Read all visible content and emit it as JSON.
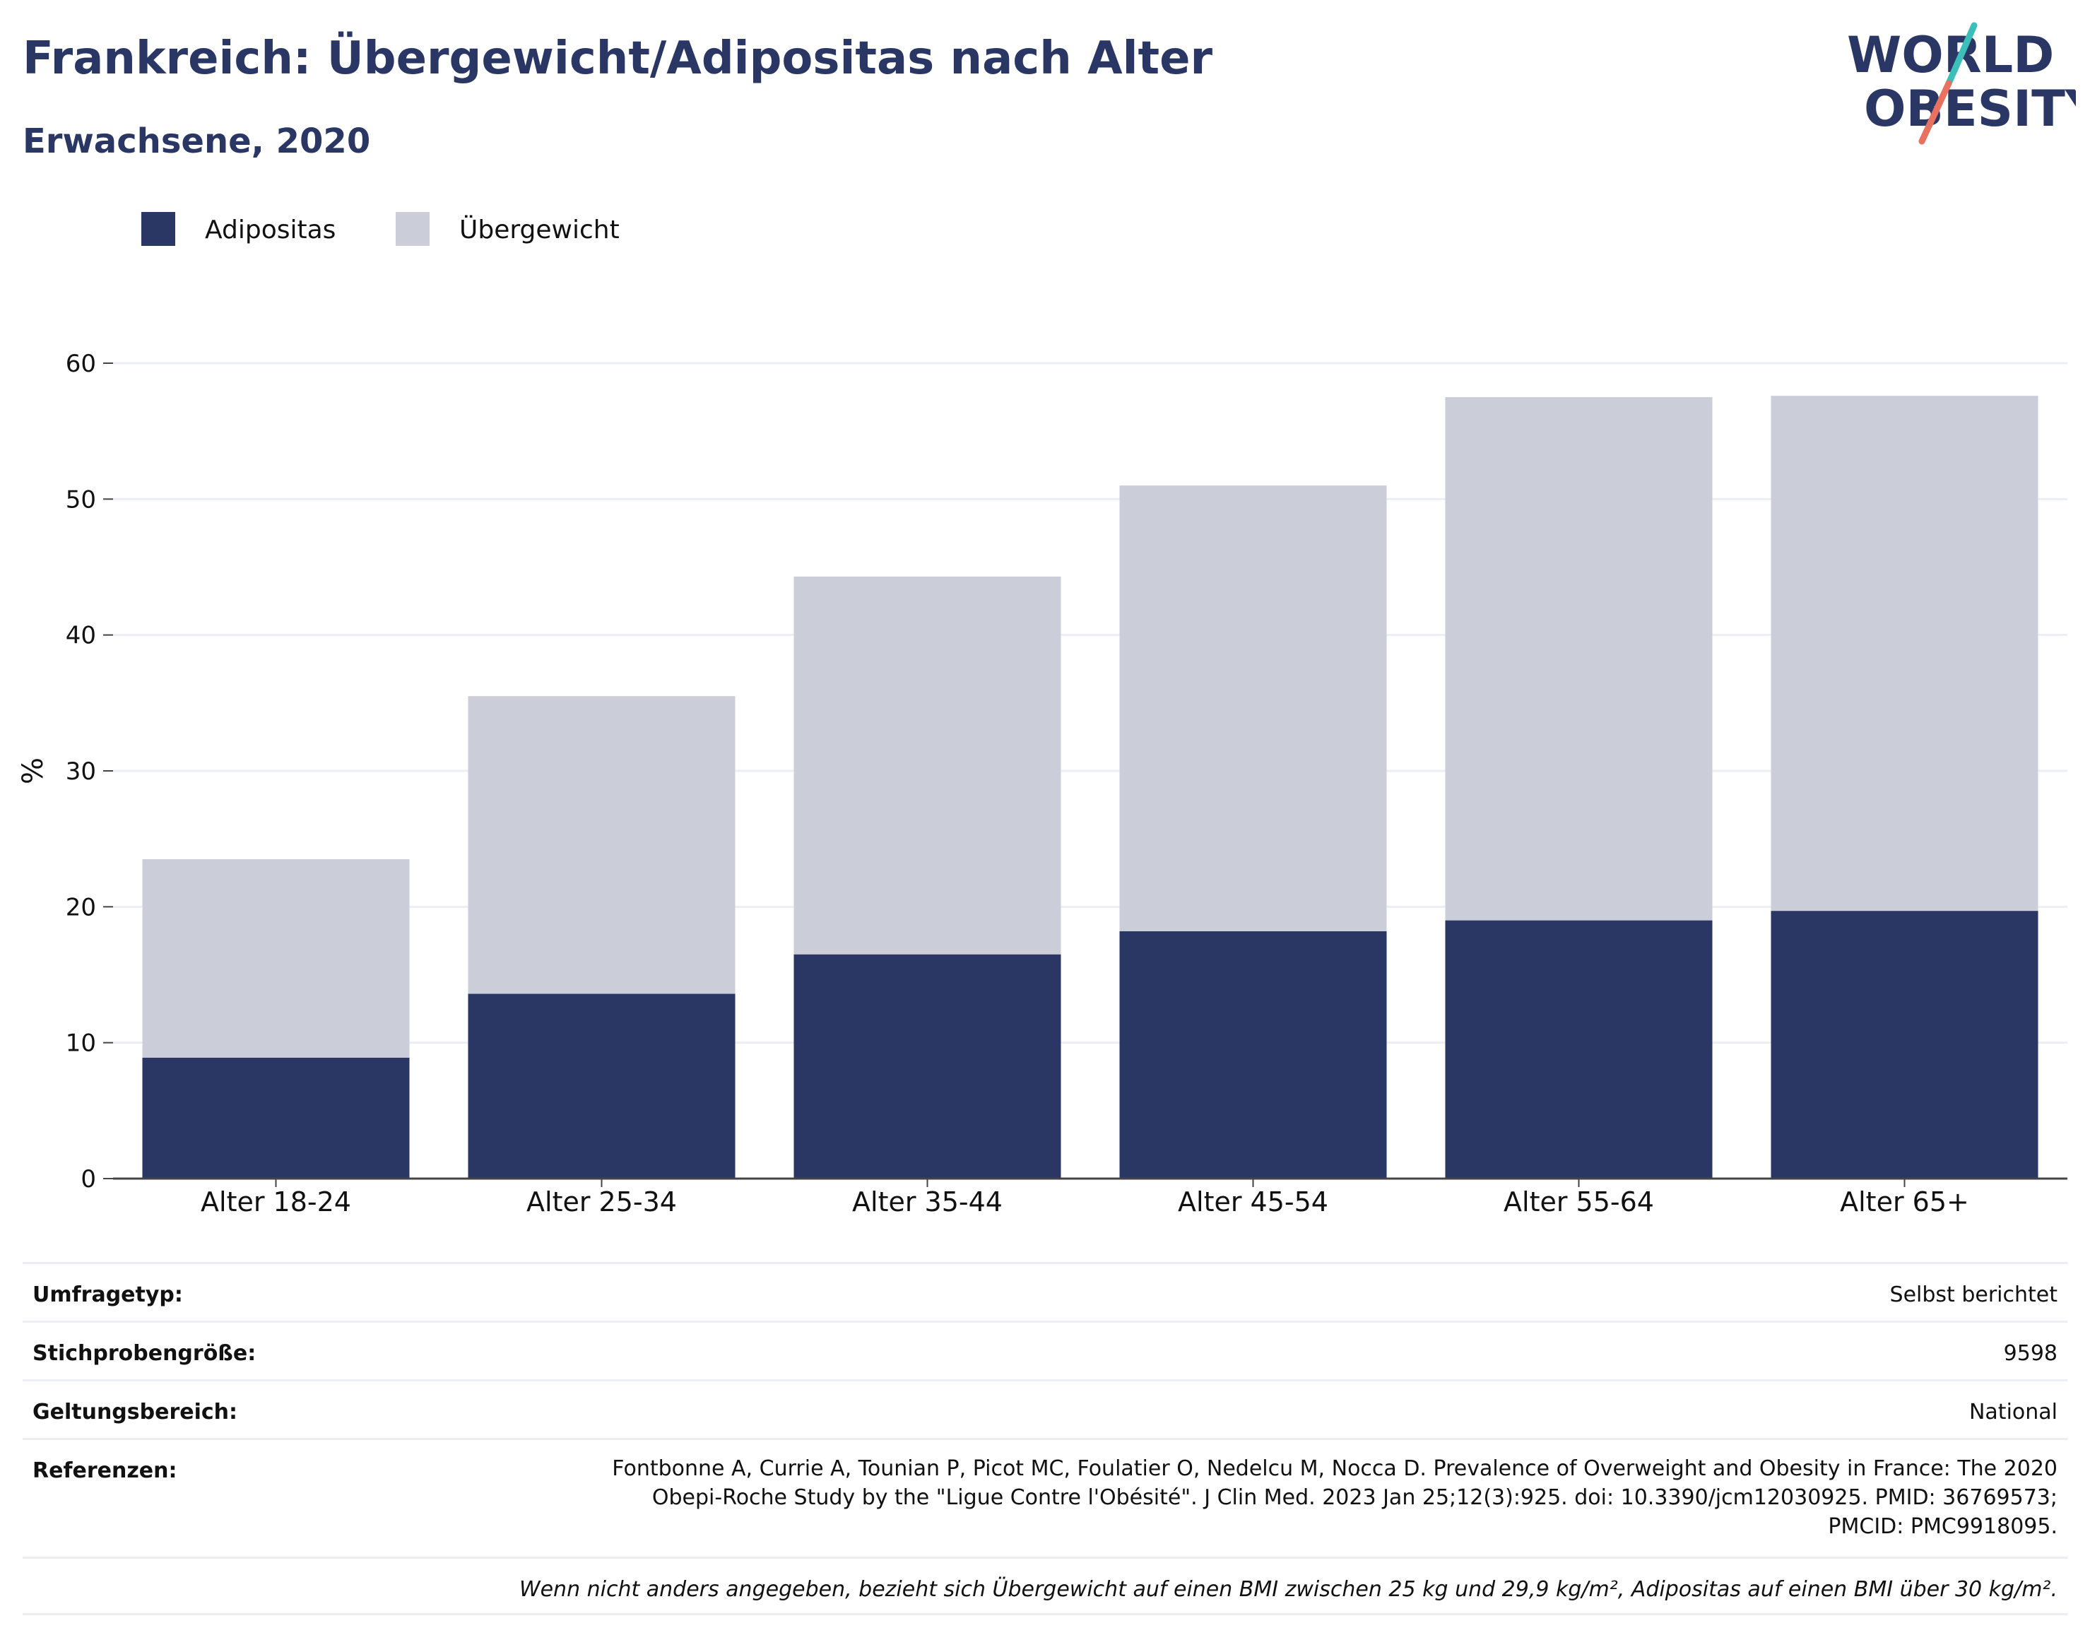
{
  "title": "Frankreich: Übergewicht/Adipositas nach Alter",
  "subtitle": "Erwachsene, 2020",
  "logo": {
    "line1": "WORLD",
    "line2": "OBESITY",
    "accent_colors": [
      "#3bbfb8",
      "#e8715f"
    ]
  },
  "colors": {
    "obesity": "#2a3663",
    "overweight": "#cbcdd9",
    "grid": "#eceef5",
    "axis": "#444444"
  },
  "chart_data": {
    "type": "bar",
    "stacked": true,
    "categories": [
      "Alter 18-24",
      "Alter 25-34",
      "Alter 35-44",
      "Alter 45-54",
      "Alter 55-64",
      "Alter 65+"
    ],
    "series": [
      {
        "name": "Adipositas",
        "values": [
          8.9,
          13.6,
          16.5,
          18.2,
          19.0,
          19.7
        ]
      },
      {
        "name": "Übergewicht",
        "values": [
          14.6,
          21.9,
          27.8,
          32.8,
          38.5,
          37.9
        ]
      }
    ],
    "ylabel": "%",
    "xlabel": "",
    "ylim": [
      0,
      60
    ],
    "yticks": [
      0,
      10,
      20,
      30,
      40,
      50,
      60
    ],
    "grid": true,
    "legend_position": "top-left"
  },
  "info": {
    "survey_type": {
      "label": "Umfragetyp:",
      "value": "Selbst berichtet"
    },
    "sample_size": {
      "label": "Stichprobengröße:",
      "value": "9598"
    },
    "scope": {
      "label": "Geltungsbereich:",
      "value": "National"
    },
    "references": {
      "label": "Referenzen:",
      "value": "Fontbonne A, Currie A, Tounian P, Picot MC, Foulatier O, Nedelcu M, Nocca D. Prevalence of Overweight and Obesity in France: The 2020 Obepi-Roche Study by the \"Ligue Contre l'Obésité\". J Clin Med. 2023 Jan 25;12(3):925. doi: 10.3390/jcm12030925. PMID: 36769573; PMCID: PMC9918095."
    },
    "note": "Wenn nicht anders angegeben, bezieht sich Übergewicht auf einen BMI zwischen 25 kg und 29,9 kg/m², Adipositas auf einen BMI über 30 kg/m²."
  }
}
